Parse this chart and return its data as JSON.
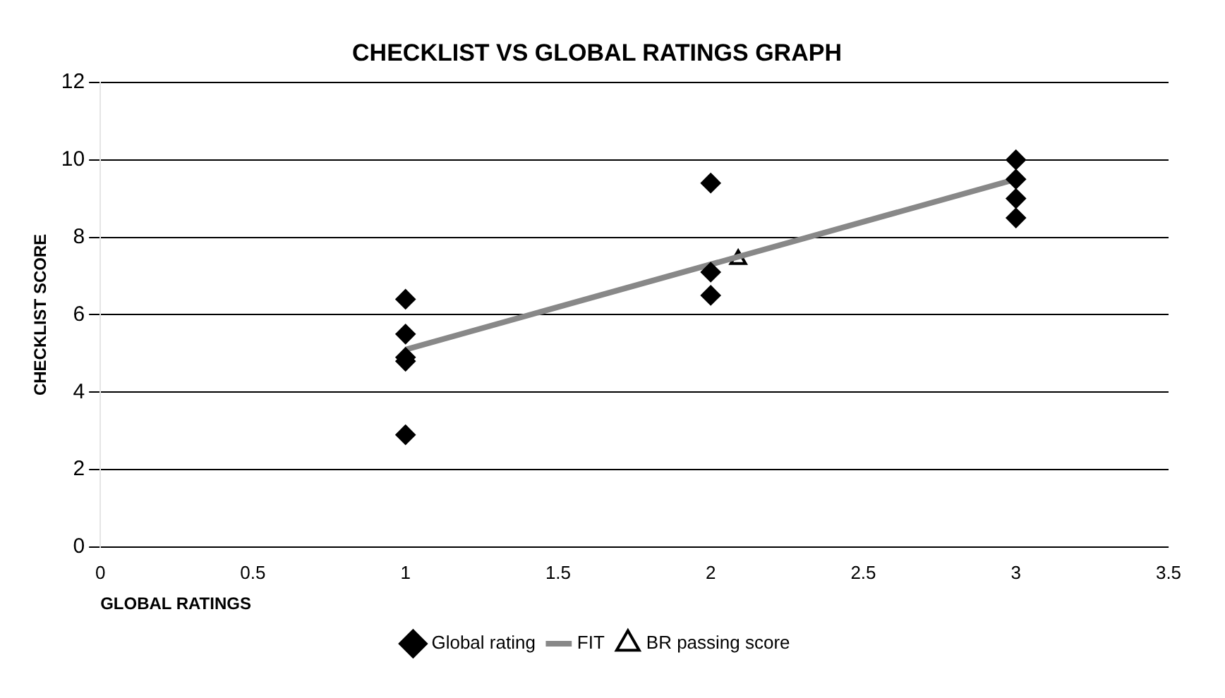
{
  "chart_data": {
    "type": "scatter",
    "title": "CHECKLIST VS GLOBAL RATINGS GRAPH",
    "xlabel": "GLOBAL RATINGS",
    "ylabel": "CHECKLIST SCORE",
    "series": [
      {
        "name": "Global rating",
        "type": "scatter",
        "color": "#000000",
        "marker": "diamond",
        "x": [
          1,
          1,
          1,
          1,
          1,
          2,
          2,
          2,
          3,
          3,
          3,
          3
        ],
        "values": [
          6.4,
          5.5,
          4.9,
          4.8,
          2.9,
          9.4,
          7.1,
          6.5,
          10,
          9.5,
          9,
          8.5
        ]
      },
      {
        "name": "FIT",
        "type": "line",
        "color": "#888888",
        "marker": "none",
        "x": [
          1,
          3
        ],
        "values": [
          5.1,
          9.5
        ]
      },
      {
        "name": "BR passing score",
        "type": "scatter",
        "color": "#000000",
        "marker": "triangle",
        "x": [
          2.09
        ],
        "values": [
          7.43
        ]
      }
    ],
    "xlim": [
      0,
      3.5
    ],
    "xticks": [
      0,
      0.5,
      1,
      1.5,
      2,
      2.5,
      3,
      3.5
    ],
    "ylim": [
      0,
      12
    ],
    "yticks": [
      0,
      2,
      4,
      6,
      8,
      10,
      12
    ],
    "grid": "y",
    "legend": "bottom"
  }
}
